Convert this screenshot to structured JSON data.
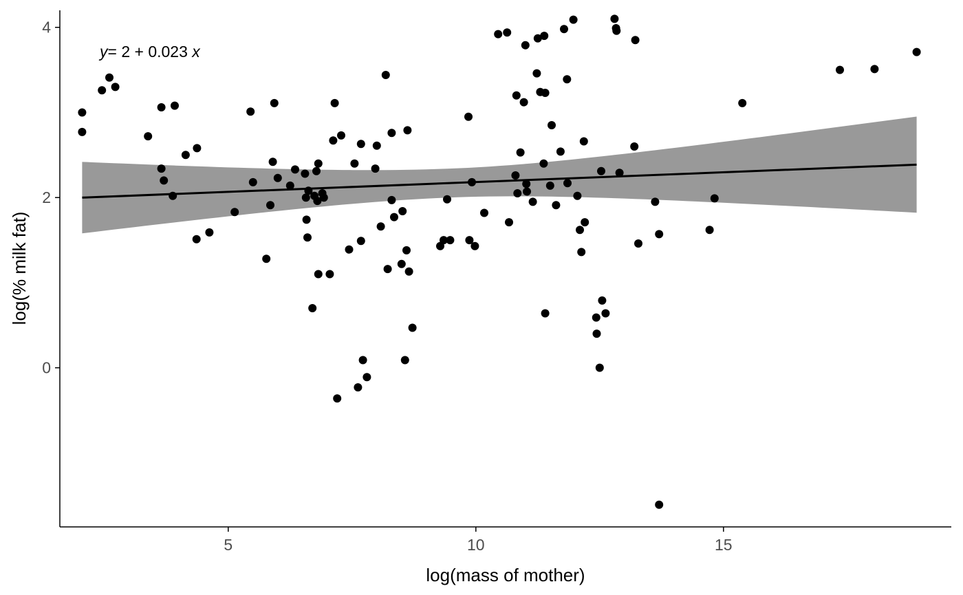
{
  "chart_data": {
    "type": "scatter",
    "title": "",
    "xlabel": "log(mass of mother)",
    "ylabel": "log(% milk fat)",
    "xlim": [
      1.6,
      19.6
    ],
    "ylim": [
      -1.87,
      4.2
    ],
    "x_ticks": [
      5,
      10,
      15
    ],
    "y_ticks": [
      0,
      2,
      4
    ],
    "x_tick_labels": [
      "5",
      "10",
      "15"
    ],
    "y_tick_labels": [
      "0",
      "2",
      "4"
    ],
    "grid": false,
    "legend": "none",
    "equation": {
      "y_var": "y",
      "rhs": "= 2 + 0.023 ",
      "x_var": "x"
    },
    "regression": {
      "intercept": 1.952,
      "slope": 0.023,
      "x_range": [
        2.05,
        18.9
      ],
      "ci_lower_start": 1.58,
      "ci_upper_start": 2.42,
      "ci_lower_end": 1.82,
      "ci_upper_end": 2.95,
      "ci_narrowest_x": 9.5
    },
    "colors": {
      "points": "#000000",
      "line": "#000000",
      "ci_band": "#999999",
      "axis": "#000000",
      "tick_label": "#4d4d4d"
    },
    "points": [
      {
        "x": 2.05,
        "y": 3.0
      },
      {
        "x": 2.05,
        "y": 2.77
      },
      {
        "x": 2.45,
        "y": 3.26
      },
      {
        "x": 2.6,
        "y": 3.41
      },
      {
        "x": 2.72,
        "y": 3.3
      },
      {
        "x": 3.38,
        "y": 2.72
      },
      {
        "x": 3.65,
        "y": 3.06
      },
      {
        "x": 3.65,
        "y": 2.34
      },
      {
        "x": 3.7,
        "y": 2.2
      },
      {
        "x": 3.88,
        "y": 2.02
      },
      {
        "x": 3.92,
        "y": 3.08
      },
      {
        "x": 4.14,
        "y": 2.5
      },
      {
        "x": 4.37,
        "y": 2.58
      },
      {
        "x": 4.36,
        "y": 1.51
      },
      {
        "x": 4.62,
        "y": 1.59
      },
      {
        "x": 5.13,
        "y": 1.83
      },
      {
        "x": 5.45,
        "y": 3.01
      },
      {
        "x": 5.5,
        "y": 2.18
      },
      {
        "x": 5.77,
        "y": 1.28
      },
      {
        "x": 5.85,
        "y": 1.91
      },
      {
        "x": 5.9,
        "y": 2.42
      },
      {
        "x": 5.93,
        "y": 3.11
      },
      {
        "x": 6.0,
        "y": 2.23
      },
      {
        "x": 6.25,
        "y": 2.14
      },
      {
        "x": 6.35,
        "y": 2.33
      },
      {
        "x": 6.55,
        "y": 2.28
      },
      {
        "x": 6.57,
        "y": 2.0
      },
      {
        "x": 6.58,
        "y": 1.74
      },
      {
        "x": 6.6,
        "y": 1.53
      },
      {
        "x": 6.62,
        "y": 2.08
      },
      {
        "x": 6.7,
        "y": 0.7
      },
      {
        "x": 6.74,
        "y": 2.02
      },
      {
        "x": 6.78,
        "y": 2.31
      },
      {
        "x": 6.8,
        "y": 1.96
      },
      {
        "x": 6.82,
        "y": 2.4
      },
      {
        "x": 6.82,
        "y": 1.1
      },
      {
        "x": 6.9,
        "y": 2.05
      },
      {
        "x": 6.93,
        "y": 2.0
      },
      {
        "x": 7.05,
        "y": 1.1
      },
      {
        "x": 7.12,
        "y": 2.67
      },
      {
        "x": 7.15,
        "y": 3.11
      },
      {
        "x": 7.2,
        "y": -0.36
      },
      {
        "x": 7.28,
        "y": 2.73
      },
      {
        "x": 7.44,
        "y": 1.39
      },
      {
        "x": 7.55,
        "y": 2.4
      },
      {
        "x": 7.62,
        "y": -0.23
      },
      {
        "x": 7.68,
        "y": 2.63
      },
      {
        "x": 7.68,
        "y": 1.49
      },
      {
        "x": 7.72,
        "y": 0.09
      },
      {
        "x": 7.8,
        "y": -0.11
      },
      {
        "x": 7.97,
        "y": 2.34
      },
      {
        "x": 8.0,
        "y": 2.61
      },
      {
        "x": 8.08,
        "y": 1.66
      },
      {
        "x": 8.18,
        "y": 3.44
      },
      {
        "x": 8.22,
        "y": 1.16
      },
      {
        "x": 8.3,
        "y": 2.76
      },
      {
        "x": 8.3,
        "y": 1.97
      },
      {
        "x": 8.35,
        "y": 1.77
      },
      {
        "x": 8.5,
        "y": 1.22
      },
      {
        "x": 8.52,
        "y": 1.84
      },
      {
        "x": 8.57,
        "y": 0.09
      },
      {
        "x": 8.6,
        "y": 1.38
      },
      {
        "x": 8.62,
        "y": 2.79
      },
      {
        "x": 8.65,
        "y": 1.13
      },
      {
        "x": 8.72,
        "y": 0.47
      },
      {
        "x": 9.28,
        "y": 1.43
      },
      {
        "x": 9.35,
        "y": 1.5
      },
      {
        "x": 9.42,
        "y": 1.98
      },
      {
        "x": 9.48,
        "y": 1.5
      },
      {
        "x": 9.85,
        "y": 2.95
      },
      {
        "x": 9.87,
        "y": 1.5
      },
      {
        "x": 9.92,
        "y": 2.18
      },
      {
        "x": 9.98,
        "y": 1.43
      },
      {
        "x": 10.17,
        "y": 1.82
      },
      {
        "x": 10.45,
        "y": 3.92
      },
      {
        "x": 10.63,
        "y": 3.94
      },
      {
        "x": 10.67,
        "y": 1.71
      },
      {
        "x": 10.8,
        "y": 2.26
      },
      {
        "x": 10.82,
        "y": 3.2
      },
      {
        "x": 10.84,
        "y": 2.05
      },
      {
        "x": 10.9,
        "y": 2.53
      },
      {
        "x": 10.97,
        "y": 3.12
      },
      {
        "x": 11.0,
        "y": 3.79
      },
      {
        "x": 11.02,
        "y": 2.16
      },
      {
        "x": 11.03,
        "y": 2.07
      },
      {
        "x": 11.15,
        "y": 1.95
      },
      {
        "x": 11.23,
        "y": 3.46
      },
      {
        "x": 11.25,
        "y": 3.87
      },
      {
        "x": 11.3,
        "y": 3.24
      },
      {
        "x": 11.37,
        "y": 2.4
      },
      {
        "x": 11.38,
        "y": 3.9
      },
      {
        "x": 11.4,
        "y": 3.23
      },
      {
        "x": 11.4,
        "y": 0.64
      },
      {
        "x": 11.5,
        "y": 2.14
      },
      {
        "x": 11.53,
        "y": 2.85
      },
      {
        "x": 11.62,
        "y": 1.91
      },
      {
        "x": 11.71,
        "y": 2.54
      },
      {
        "x": 11.78,
        "y": 3.98
      },
      {
        "x": 11.84,
        "y": 3.39
      },
      {
        "x": 11.85,
        "y": 2.17
      },
      {
        "x": 11.97,
        "y": 4.09
      },
      {
        "x": 12.05,
        "y": 2.02
      },
      {
        "x": 12.1,
        "y": 1.62
      },
      {
        "x": 12.13,
        "y": 1.36
      },
      {
        "x": 12.18,
        "y": 2.66
      },
      {
        "x": 12.2,
        "y": 1.71
      },
      {
        "x": 12.43,
        "y": 0.59
      },
      {
        "x": 12.44,
        "y": 0.4
      },
      {
        "x": 12.5,
        "y": 0.0
      },
      {
        "x": 12.53,
        "y": 2.31
      },
      {
        "x": 12.55,
        "y": 0.79
      },
      {
        "x": 12.62,
        "y": 0.64
      },
      {
        "x": 12.8,
        "y": 4.1
      },
      {
        "x": 12.83,
        "y": 3.99
      },
      {
        "x": 12.84,
        "y": 3.96
      },
      {
        "x": 12.9,
        "y": 2.29
      },
      {
        "x": 13.2,
        "y": 2.6
      },
      {
        "x": 13.22,
        "y": 3.85
      },
      {
        "x": 13.28,
        "y": 1.46
      },
      {
        "x": 13.62,
        "y": 1.95
      },
      {
        "x": 13.7,
        "y": -1.61
      },
      {
        "x": 13.7,
        "y": 1.57
      },
      {
        "x": 14.72,
        "y": 1.62
      },
      {
        "x": 14.82,
        "y": 1.99
      },
      {
        "x": 15.38,
        "y": 3.11
      },
      {
        "x": 17.35,
        "y": 3.5
      },
      {
        "x": 18.05,
        "y": 3.51
      },
      {
        "x": 18.9,
        "y": 3.71
      }
    ]
  }
}
